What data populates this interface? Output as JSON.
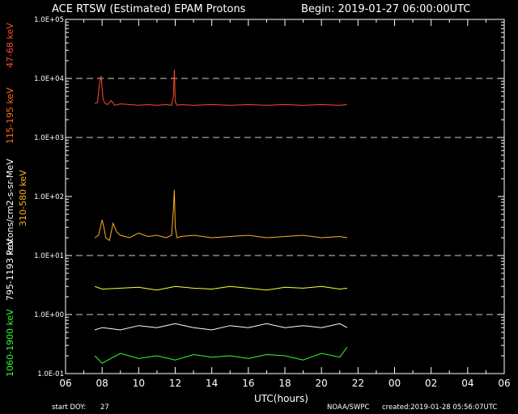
{
  "title": {
    "text": "ACE RTSW (Estimated) EPAM Protons",
    "begin": "Begin: 2019-01-27 06:00:00UTC"
  },
  "footer": {
    "start_doy_label": "start DOY:",
    "start_doy_value": "27",
    "source": "NOAA/SWPC",
    "created": "created:2019-01-28 05:56:07UTC"
  },
  "chart_data": {
    "type": "line",
    "xlabel": "UTC(hours)",
    "ylabel": "Protons/cm2-s-sr-MeV",
    "y_scale": "log",
    "ylim": [
      0.1,
      100000
    ],
    "xlim": [
      6,
      30
    ],
    "y_tick_labels": [
      "1.0E-01",
      "1.0E+00",
      "1.0E+01",
      "1.0E+02",
      "1.0E+03",
      "1.0E+04",
      "1.0E+05"
    ],
    "x_tick_labels": [
      "06",
      "08",
      "10",
      "12",
      "14",
      "16",
      "18",
      "20",
      "22",
      "00",
      "02",
      "04",
      "06"
    ],
    "gridlines_dashed_at": [
      1,
      10,
      1000,
      10000
    ],
    "grid": true,
    "series": [
      {
        "name": "47-68 keV",
        "color": "#ff4a2a",
        "x": [
          7.6,
          7.75,
          7.85,
          7.95,
          8.05,
          8.15,
          8.3,
          8.5,
          8.7,
          9.0,
          9.5,
          10.0,
          10.5,
          11.0,
          11.5,
          11.8,
          11.9,
          11.95,
          12.0,
          12.1,
          12.3,
          13,
          14,
          15,
          16,
          17,
          18,
          19,
          20,
          21,
          21.4
        ],
        "y": [
          3800,
          3900,
          8000,
          11000,
          4500,
          3800,
          3600,
          4200,
          3500,
          3700,
          3600,
          3500,
          3600,
          3500,
          3600,
          3500,
          5000,
          14000,
          4000,
          3500,
          3600,
          3500,
          3600,
          3500,
          3600,
          3500,
          3600,
          3500,
          3600,
          3500,
          3600
        ]
      },
      {
        "name": "115-195 keV",
        "color": "#ff6a10",
        "x": [],
        "y": []
      },
      {
        "name": "310-580 keV",
        "color": "#ffb020",
        "x": [
          7.6,
          7.8,
          8.0,
          8.1,
          8.2,
          8.4,
          8.6,
          8.8,
          9.0,
          9.5,
          10.0,
          10.5,
          11.0,
          11.5,
          11.8,
          11.9,
          11.95,
          12.0,
          12.1,
          12.3,
          13,
          14,
          15,
          16,
          17,
          18,
          19,
          20,
          21,
          21.4
        ],
        "y": [
          20,
          22,
          40,
          30,
          20,
          18,
          35,
          25,
          22,
          20,
          24,
          21,
          22,
          20,
          22,
          60,
          130,
          30,
          20,
          21,
          22,
          20,
          21,
          22,
          20,
          21,
          22,
          20,
          21,
          20
        ]
      },
      {
        "name": "795-1193 keV",
        "color": "#ffff30",
        "x": [
          7.6,
          8,
          9,
          10,
          11,
          12,
          13,
          14,
          15,
          16,
          17,
          18,
          19,
          20,
          21,
          21.4
        ],
        "y": [
          3,
          2.7,
          2.8,
          2.9,
          2.6,
          3.0,
          2.8,
          2.7,
          3.0,
          2.8,
          2.6,
          2.9,
          2.8,
          3.0,
          2.7,
          2.8
        ]
      },
      {
        "name": "1060-1900 keV",
        "color": "#30ff30",
        "x": [
          7.6,
          8,
          9,
          10,
          11,
          12,
          13,
          14,
          15,
          16,
          17,
          18,
          19,
          20,
          21,
          21.4
        ],
        "y": [
          0.2,
          0.15,
          0.22,
          0.18,
          0.2,
          0.17,
          0.21,
          0.19,
          0.2,
          0.18,
          0.21,
          0.2,
          0.17,
          0.22,
          0.19,
          0.28
        ]
      },
      {
        "name": "white",
        "color": "#ffffff",
        "x": [
          7.6,
          8,
          9,
          10,
          11,
          12,
          13,
          14,
          15,
          16,
          17,
          18,
          19,
          20,
          21,
          21.4
        ],
        "y": [
          0.55,
          0.6,
          0.55,
          0.65,
          0.6,
          0.7,
          0.6,
          0.55,
          0.65,
          0.6,
          0.7,
          0.6,
          0.65,
          0.6,
          0.7,
          0.6
        ]
      }
    ]
  },
  "left_labels": [
    {
      "text": "47-68 keV",
      "color": "#ff4a2a"
    },
    {
      "text": "115-195 keV",
      "color": "#ff6a10"
    },
    {
      "text": "Protons/cm2-s-sr-MeV",
      "color": "#ffffff"
    },
    {
      "text": "310-580 keV",
      "color": "#ffb020"
    },
    {
      "text": "795-1193 keV",
      "color": "#ffffff"
    },
    {
      "text": "1060-1900 keV",
      "color": "#30ff30"
    }
  ]
}
